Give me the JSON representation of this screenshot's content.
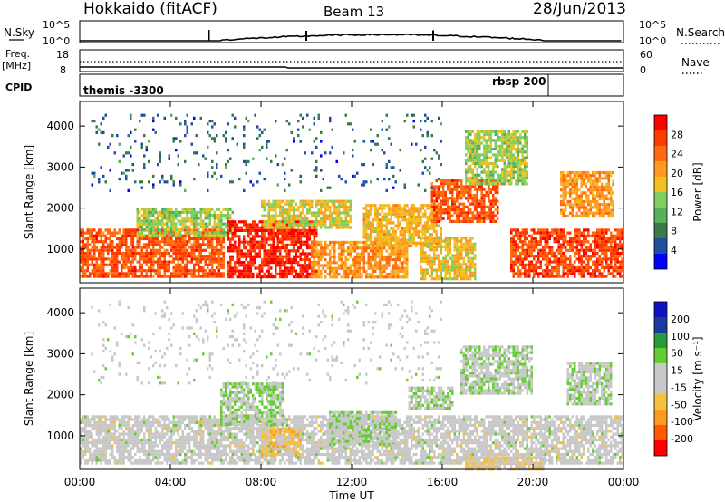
{
  "header": {
    "station": "Hokkaido (fitACF)",
    "beam": "Beam 13",
    "date": "28/Jun/2013"
  },
  "strips": {
    "nsky_label": "N.Sky",
    "nsky_ticks": [
      "10^5",
      "10^0"
    ],
    "nsearch_label": "N.Search",
    "nsearch_ticks": [
      "10^5",
      "10^0"
    ],
    "freq_label": "Freq.",
    "freq_unit": "[MHz]",
    "freq_ticks": [
      "18",
      "8"
    ],
    "nave_label": "Nave",
    "nave_ticks": [
      "60",
      "0"
    ],
    "cpid_label": "CPID",
    "cpid_left": "themis  -3300",
    "cpid_right": "rbsp  200"
  },
  "axes": {
    "xlabel": "Time UT",
    "xticks": [
      "00:00",
      "04:00",
      "08:00",
      "12:00",
      "16:00",
      "20:00",
      "00:00"
    ],
    "ylabel": "Slant Range [km]",
    "yticks": [
      "4000",
      "3000",
      "2000",
      "1000"
    ]
  },
  "colorbars": {
    "power": {
      "label": "Power [dB]",
      "ticks": [
        "28",
        "24",
        "20",
        "16",
        "12",
        "8",
        "4"
      ],
      "colors": [
        "#0000ff",
        "#1f4fa0",
        "#3a7a4a",
        "#58b05a",
        "#7fcf60",
        "#f0c020",
        "#ff9a20",
        "#ff6a10",
        "#ff3a00",
        "#ff0000"
      ]
    },
    "velocity": {
      "label": "Velocity [m s⁻¹]",
      "ticks": [
        "200",
        "100",
        "50",
        "15",
        "-15",
        "-50",
        "-100",
        "-200"
      ],
      "colors": [
        "#ff0000",
        "#ff5a00",
        "#ff9a20",
        "#f5c040",
        "#c8c8c8",
        "#c8c8c8",
        "#66cc33",
        "#2a9a3a",
        "#1a3aa0",
        "#1010c0"
      ]
    }
  },
  "chart_data": [
    {
      "type": "heatmap",
      "name": "power",
      "xlabel": "Time UT",
      "ylabel": "Slant Range [km]",
      "xlim": [
        0,
        24
      ],
      "ylim": [
        180,
        4600
      ],
      "colorbar": "Power [dB]",
      "clim": [
        0,
        30
      ],
      "regions": [
        {
          "t": [
            0.0,
            6.4
          ],
          "r": [
            300,
            1500
          ],
          "level": 24
        },
        {
          "t": [
            2.5,
            6.8
          ],
          "r": [
            1300,
            2000
          ],
          "level": 14
        },
        {
          "t": [
            6.5,
            10.5
          ],
          "r": [
            300,
            1700
          ],
          "level": 27
        },
        {
          "t": [
            8.0,
            12.0
          ],
          "r": [
            1500,
            2200
          ],
          "level": 16
        },
        {
          "t": [
            10.2,
            14.5
          ],
          "r": [
            300,
            1200
          ],
          "level": 20
        },
        {
          "t": [
            12.5,
            16.0
          ],
          "r": [
            1100,
            2100
          ],
          "level": 18
        },
        {
          "t": [
            15.0,
            17.5
          ],
          "r": [
            300,
            1300
          ],
          "level": 17
        },
        {
          "t": [
            15.5,
            18.5
          ],
          "r": [
            1700,
            2700
          ],
          "level": 24
        },
        {
          "t": [
            17.0,
            19.8
          ],
          "r": [
            2600,
            3900
          ],
          "level": 14
        },
        {
          "t": [
            19.0,
            24.0
          ],
          "r": [
            300,
            1500
          ],
          "level": 25
        },
        {
          "t": [
            21.2,
            23.6
          ],
          "r": [
            1800,
            2900
          ],
          "level": 20
        },
        {
          "t": [
            0.5,
            16.0
          ],
          "r": [
            2400,
            4300
          ],
          "level": 6
        }
      ]
    },
    {
      "type": "heatmap",
      "name": "velocity",
      "xlabel": "Time UT",
      "ylabel": "Slant Range [km]",
      "xlim": [
        0,
        24
      ],
      "ylim": [
        180,
        4600
      ],
      "colorbar": "Velocity [m s-1]",
      "clim": [
        -250,
        250
      ],
      "regions": [
        {
          "t": [
            0.0,
            24.0
          ],
          "r": [
            300,
            1500
          ],
          "level": 0
        },
        {
          "t": [
            6.2,
            9.0
          ],
          "r": [
            1300,
            2300
          ],
          "level": 40
        },
        {
          "t": [
            8.0,
            9.8
          ],
          "r": [
            500,
            1200
          ],
          "level": -60
        },
        {
          "t": [
            11.0,
            14.0
          ],
          "r": [
            800,
            1600
          ],
          "level": 35
        },
        {
          "t": [
            14.5,
            16.5
          ],
          "r": [
            1700,
            2200
          ],
          "level": 40
        },
        {
          "t": [
            16.8,
            20.0
          ],
          "r": [
            2000,
            3200
          ],
          "level": 30
        },
        {
          "t": [
            17.0,
            20.5
          ],
          "r": [
            180,
            500
          ],
          "level": -40
        },
        {
          "t": [
            21.5,
            23.5
          ],
          "r": [
            1800,
            2800
          ],
          "level": 30
        },
        {
          "t": [
            0.5,
            16.0
          ],
          "r": [
            2300,
            4300
          ],
          "level": 5
        }
      ]
    }
  ]
}
